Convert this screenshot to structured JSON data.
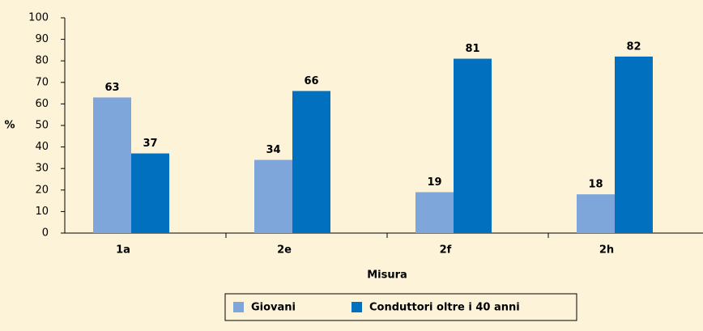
{
  "chart_data": {
    "type": "bar",
    "categories": [
      "1a",
      "2e",
      "2f",
      "2h"
    ],
    "series": [
      {
        "name": "Giovani",
        "color": "#7ea6db",
        "values": [
          63,
          34,
          19,
          18
        ]
      },
      {
        "name": "Conduttori oltre i 40 anni",
        "color": "#0070bf",
        "values": [
          37,
          66,
          81,
          82
        ]
      }
    ],
    "y_label": "%",
    "x_label": "Misura",
    "ylim": [
      0,
      100
    ],
    "yticks": [
      0,
      10,
      20,
      30,
      40,
      50,
      60,
      70,
      80,
      90,
      100
    ],
    "grid": false,
    "legend": "bottom"
  }
}
